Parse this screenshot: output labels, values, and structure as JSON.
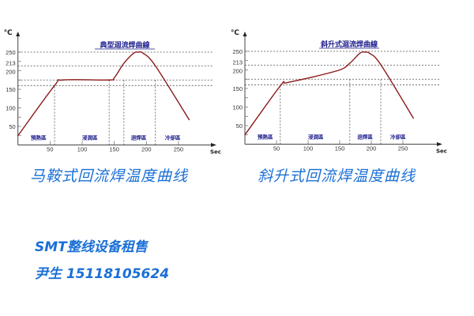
{
  "chart_data": [
    {
      "type": "line",
      "title": "典型迴流焊曲線",
      "y_unit": "℃",
      "x_unit": "Sec",
      "xlim": [
        0,
        270
      ],
      "ylim": [
        0,
        270
      ],
      "x_ticks": [
        50,
        100,
        150,
        200,
        250
      ],
      "y_ticks": [
        50,
        100,
        150,
        200,
        213,
        250
      ],
      "h_reference_lines": [
        250,
        213,
        175,
        160
      ],
      "v_reference_lines": [
        57,
        142,
        165,
        214
      ],
      "zones": [
        {
          "label": "預熱區",
          "x": 20
        },
        {
          "label": "浸潤區",
          "x": 100
        },
        {
          "label": "迴焊區",
          "x": 176
        },
        {
          "label": "冷卻區",
          "x": 229
        }
      ],
      "series": [
        {
          "color": "#8b1a1a",
          "x": [
            0,
            57,
            70,
            142,
            150,
            165,
            180,
            187,
            195,
            214,
            267
          ],
          "y": [
            25,
            160,
            175,
            175,
            181,
            220,
            247,
            250,
            247,
            213,
            67
          ]
        }
      ]
    },
    {
      "type": "line",
      "title": "斜升式迴流焊曲線",
      "y_unit": "℃",
      "x_unit": "Sec",
      "xlim": [
        0,
        270
      ],
      "ylim": [
        0,
        270
      ],
      "x_ticks": [
        50,
        100,
        150,
        200,
        250
      ],
      "y_ticks": [
        50,
        100,
        150,
        200,
        213,
        250
      ],
      "h_reference_lines": [
        250,
        213,
        175,
        160
      ],
      "v_reference_lines": [
        56,
        166,
        215
      ],
      "zones": [
        {
          "label": "預熱區",
          "x": 20
        },
        {
          "label": "浸潤區",
          "x": 100
        },
        {
          "label": "迴焊區",
          "x": 178
        },
        {
          "label": "冷卻區",
          "x": 230
        }
      ],
      "series": [
        {
          "color": "#8b1a1a",
          "x": [
            0,
            56,
            65,
            100,
            150,
            166,
            182,
            190,
            198,
            215,
            267
          ],
          "y": [
            25,
            157,
            165,
            178,
            200,
            218,
            245,
            248,
            244,
            214,
            69
          ]
        }
      ]
    }
  ],
  "captions": {
    "left": "马鞍式回流焊温度曲线",
    "right": "斜升式回流焊温度曲线",
    "ad": "SMT整线设备租售",
    "contact": "尹生  15118105624"
  },
  "colors": {
    "caption": "#1a6fd6",
    "title": "#1a1a8c",
    "curve": "#8b1a1a",
    "zone_label": "#1a1a8c"
  }
}
